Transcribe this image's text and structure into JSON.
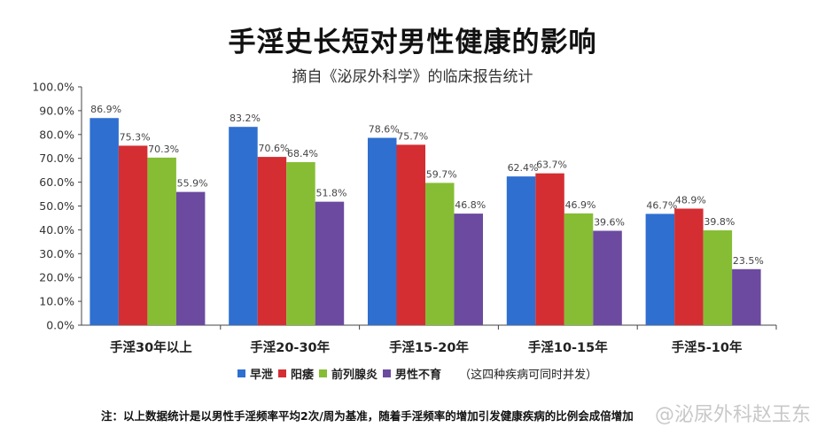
{
  "colors": {
    "early_ejaculation": "#2f6fd0",
    "impotence": "#d42e32",
    "prostatitis": "#86bd35",
    "infertility": "#6b4aa0"
  },
  "header": {
    "title": "手淫史长短对男性健康的影响",
    "subtitle": "摘自《泌尿外科学》的临床报告统计"
  },
  "legend": {
    "items": [
      "早泄",
      "阳痿",
      "前列腺炎",
      "男性不育"
    ],
    "note": "（这四种疾病可同时并发）"
  },
  "footnote": "注：以上数据统计是以男性手淫频率平均2次/周为基准，随着手淫频率的增加引发健康疾病的比例会成倍增加",
  "watermark": "@泌尿外科赵玉东",
  "chart_data": {
    "type": "bar",
    "categories": [
      "手淫30年以上",
      "手淫20-30年",
      "手淫15-20年",
      "手淫10-15年",
      "手淫5-10年"
    ],
    "series": [
      {
        "name": "早泄",
        "values": [
          86.9,
          83.2,
          78.6,
          62.4,
          46.7
        ],
        "color": "#2f6fd0"
      },
      {
        "name": "阳痿",
        "values": [
          75.3,
          70.6,
          75.7,
          63.7,
          48.9
        ],
        "color": "#d42e32"
      },
      {
        "name": "前列腺炎",
        "values": [
          70.3,
          68.4,
          59.7,
          46.9,
          39.8
        ],
        "color": "#86bd35"
      },
      {
        "name": "男性不育",
        "values": [
          55.9,
          51.8,
          46.8,
          39.6,
          23.5
        ],
        "color": "#6b4aa0"
      }
    ],
    "ylim": [
      0,
      100
    ],
    "yticks": [
      "0.0%",
      "10.0%",
      "20.0%",
      "30.0%",
      "40.0%",
      "50.0%",
      "60.0%",
      "70.0%",
      "80.0%",
      "90.0%",
      "100.0%"
    ],
    "legend_position": "bottom",
    "grid": false,
    "title": "手淫史长短对男性健康的影响",
    "subtitle": "摘自《泌尿外科学》的临床报告统计"
  }
}
